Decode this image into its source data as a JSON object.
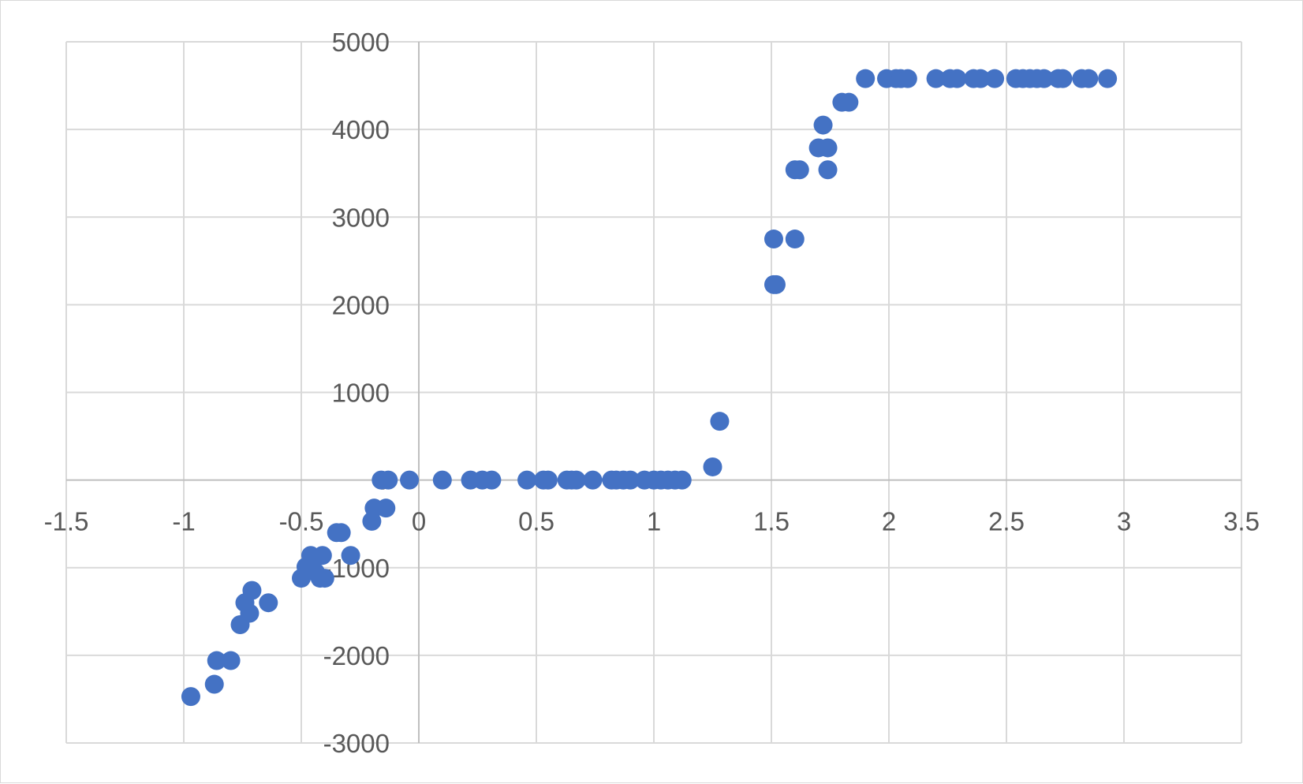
{
  "chart_data": {
    "type": "scatter",
    "title": "",
    "xlabel": "",
    "ylabel": "",
    "xlim": [
      -1.5,
      3.5
    ],
    "ylim": [
      -3000,
      5000
    ],
    "x_ticks": [
      "-1.5",
      "-1",
      "-0.5",
      "0",
      "0.5",
      "1",
      "1.5",
      "2",
      "2.5",
      "3",
      "3.5"
    ],
    "y_ticks": [
      "-3000",
      "-2000",
      "-1000",
      "0",
      "1000",
      "2000",
      "3000",
      "4000",
      "5000"
    ],
    "grid": true,
    "legend": "none",
    "marker_color": "#4472C4",
    "series": [
      {
        "points": [
          [
            -0.97,
            -2470
          ],
          [
            -0.87,
            -2330
          ],
          [
            -0.86,
            -2060
          ],
          [
            -0.8,
            -2060
          ],
          [
            -0.76,
            -1650
          ],
          [
            -0.74,
            -1400
          ],
          [
            -0.72,
            -1520
          ],
          [
            -0.71,
            -1260
          ],
          [
            -0.64,
            -1400
          ],
          [
            -0.5,
            -1120
          ],
          [
            -0.48,
            -990
          ],
          [
            -0.46,
            -860
          ],
          [
            -0.44,
            -1050
          ],
          [
            -0.42,
            -1120
          ],
          [
            -0.4,
            -1120
          ],
          [
            -0.41,
            -860
          ],
          [
            -0.35,
            -600
          ],
          [
            -0.33,
            -600
          ],
          [
            -0.29,
            -860
          ],
          [
            -0.2,
            -470
          ],
          [
            -0.19,
            -320
          ],
          [
            -0.14,
            -320
          ],
          [
            -0.16,
            0
          ],
          [
            -0.13,
            0
          ],
          [
            -0.04,
            0
          ],
          [
            0.1,
            0
          ],
          [
            0.22,
            0
          ],
          [
            0.27,
            0
          ],
          [
            0.31,
            0
          ],
          [
            0.46,
            0
          ],
          [
            0.53,
            0
          ],
          [
            0.55,
            0
          ],
          [
            0.63,
            0
          ],
          [
            0.65,
            0
          ],
          [
            0.67,
            0
          ],
          [
            0.74,
            0
          ],
          [
            0.82,
            0
          ],
          [
            0.84,
            0
          ],
          [
            0.87,
            0
          ],
          [
            0.9,
            0
          ],
          [
            0.96,
            0
          ],
          [
            1.0,
            0
          ],
          [
            1.03,
            0
          ],
          [
            1.06,
            0
          ],
          [
            1.09,
            0
          ],
          [
            1.12,
            0
          ],
          [
            1.25,
            150
          ],
          [
            1.28,
            670
          ],
          [
            1.51,
            2230
          ],
          [
            1.52,
            2230
          ],
          [
            1.51,
            2750
          ],
          [
            1.6,
            2750
          ],
          [
            1.6,
            3540
          ],
          [
            1.62,
            3540
          ],
          [
            1.74,
            3540
          ],
          [
            1.7,
            3790
          ],
          [
            1.74,
            3790
          ],
          [
            1.72,
            4050
          ],
          [
            1.8,
            4310
          ],
          [
            1.83,
            4310
          ],
          [
            1.9,
            4580
          ],
          [
            1.99,
            4580
          ],
          [
            2.03,
            4580
          ],
          [
            2.05,
            4580
          ],
          [
            2.08,
            4580
          ],
          [
            2.2,
            4580
          ],
          [
            2.26,
            4580
          ],
          [
            2.29,
            4580
          ],
          [
            2.36,
            4580
          ],
          [
            2.39,
            4580
          ],
          [
            2.45,
            4580
          ],
          [
            2.54,
            4580
          ],
          [
            2.57,
            4580
          ],
          [
            2.6,
            4580
          ],
          [
            2.63,
            4580
          ],
          [
            2.66,
            4580
          ],
          [
            2.72,
            4580
          ],
          [
            2.74,
            4580
          ],
          [
            2.82,
            4580
          ],
          [
            2.85,
            4580
          ],
          [
            2.93,
            4580
          ]
        ]
      }
    ]
  }
}
